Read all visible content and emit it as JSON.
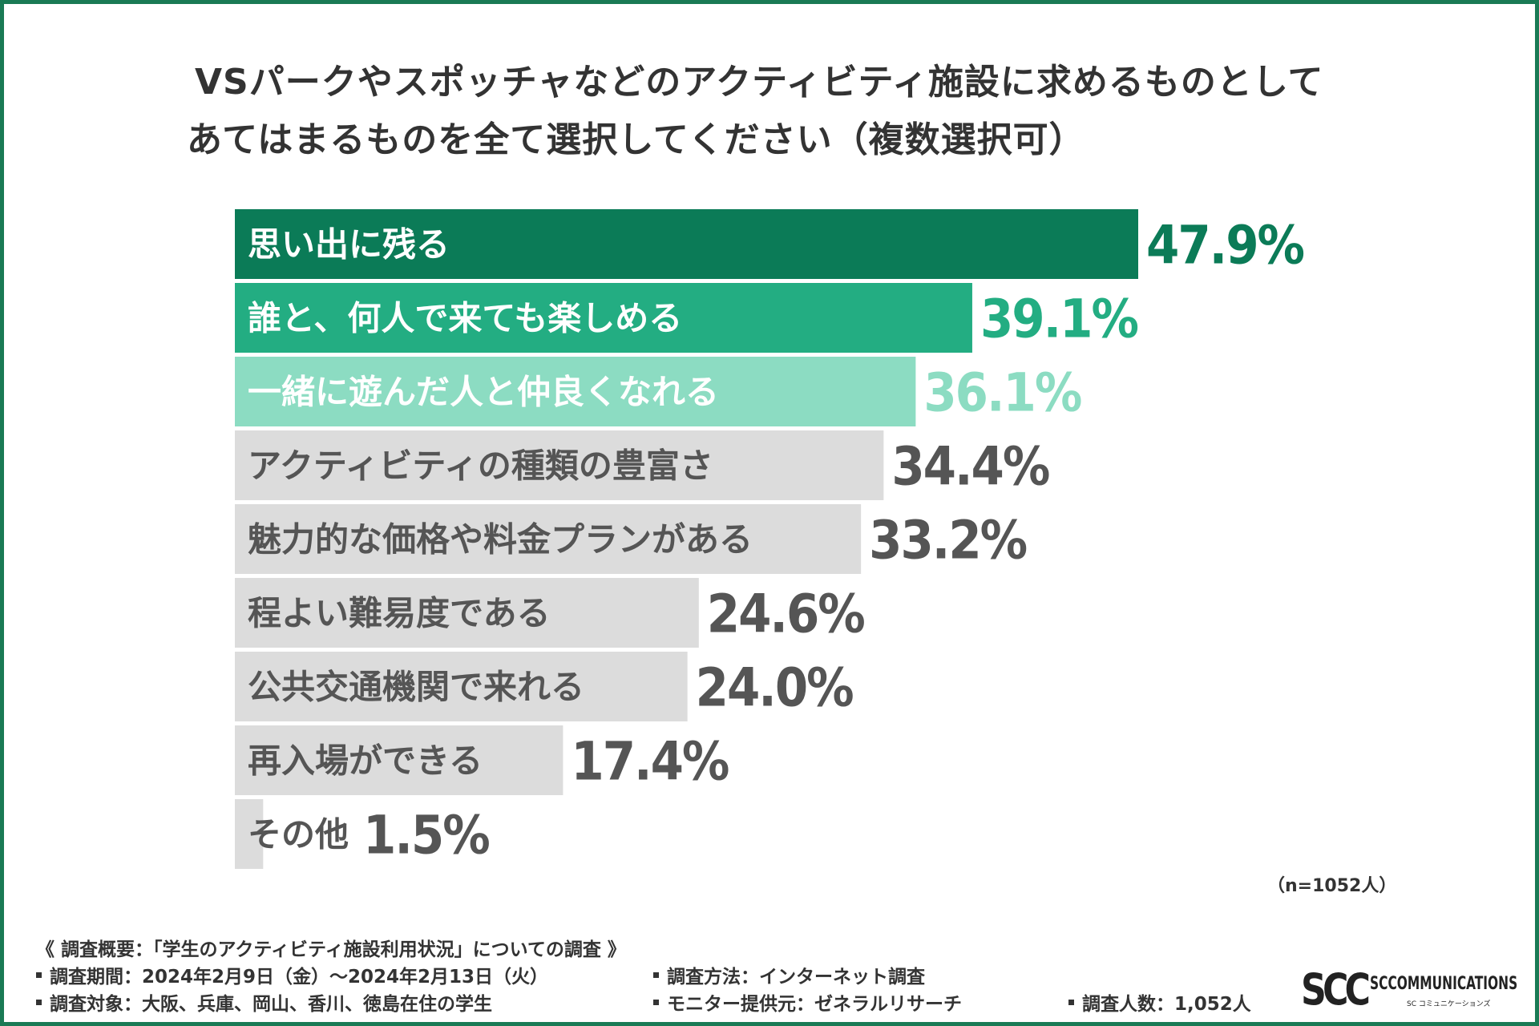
{
  "title": {
    "line1": "VSパークやスポッチャなどのアクティビティ施設に求めるものとして",
    "line2": "あてはまるものを全て選択してください（複数選択可）"
  },
  "chart_data": {
    "type": "bar",
    "orientation": "horizontal",
    "title": "VSパークやスポッチャなどのアクティビティ施設に求めるものとして あてはまるものを全て選択してください（複数選択可）",
    "categories": [
      "思い出に残る",
      "誰と、何人で来ても楽しめる",
      "一緒に遊んだ人と仲良くなれる",
      "アクティビティの種類の豊富さ",
      "魅力的な価格や料金プランがある",
      "程よい難易度である",
      "公共交通機関で来れる",
      "再入場ができる",
      "その他"
    ],
    "values": [
      47.9,
      39.1,
      36.1,
      34.4,
      33.2,
      24.6,
      24.0,
      17.4,
      1.5
    ],
    "value_labels": [
      "47.9%",
      "39.1%",
      "36.1%",
      "34.4%",
      "33.2%",
      "24.6%",
      "24.0%",
      "17.4%",
      "1.5%"
    ],
    "unit": "%",
    "xlim": [
      0,
      47.9
    ],
    "bar_colors": [
      "#0b7b57",
      "#23ad82",
      "#8cdcc2",
      "#dcdcdc",
      "#dcdcdc",
      "#dcdcdc",
      "#dcdcdc",
      "#dcdcdc",
      "#dcdcdc"
    ],
    "value_colors": [
      "#0b7b57",
      "#23ad82",
      "#8cdcc2",
      "#555555",
      "#555555",
      "#555555",
      "#555555",
      "#555555",
      "#555555"
    ],
    "label_colors": [
      "#ffffff",
      "#ffffff",
      "#ffffff",
      "#555555",
      "#555555",
      "#555555",
      "#555555",
      "#555555",
      "#555555"
    ],
    "legend": "none",
    "grid": false
  },
  "sample_note": "（n=1052人）",
  "survey": {
    "heading": "《 調査概要：「学生のアクティビティ施設利用状況」についての調査 》",
    "period": "調査期間：2024年2月9日（金）～2024年2月13日（火）",
    "method": "調査方法：インターネット調査",
    "target": "調査対象：大阪、兵庫、岡山、香川、徳島在住の学生",
    "provider": "モニター提供元：ゼネラルリサーチ",
    "count": "調査人数：1,052人"
  },
  "logo": {
    "mark": "SCC",
    "name": "SCCOMMUNICATIONS",
    "sub": "SC コミュニケーションズ"
  }
}
